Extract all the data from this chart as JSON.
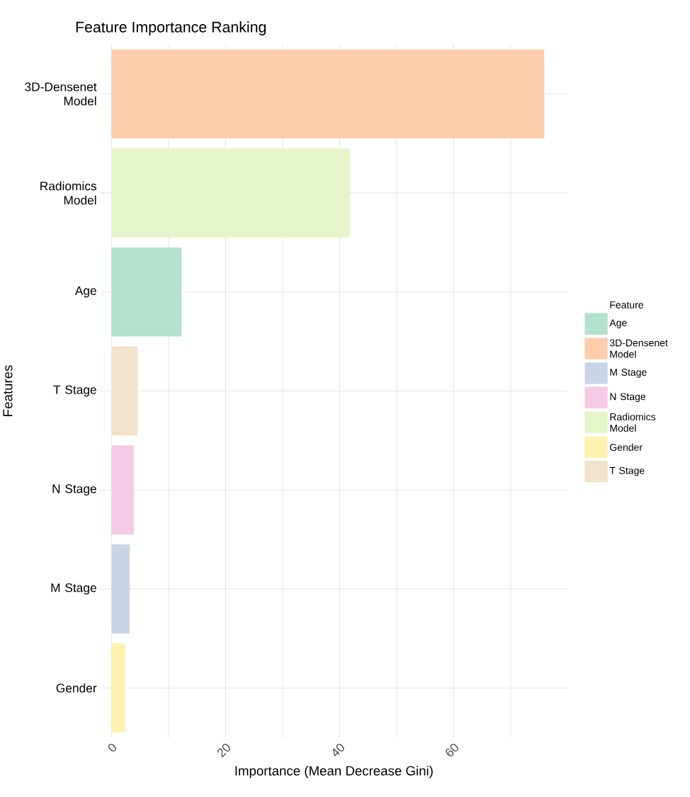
{
  "chart_data": {
    "type": "bar",
    "orientation": "horizontal",
    "title": "Feature Importance Ranking",
    "xlabel": "Importance (Mean Decrease Gini)",
    "ylabel": "Features",
    "legend_title": "Feature",
    "categories": [
      "3D-Densenet Model",
      "Radiomics Model",
      "Age",
      "T Stage",
      "N Stage",
      "M Stage",
      "Gender"
    ],
    "series": [
      {
        "name": "Age",
        "color": "#b3e2cd",
        "values": [
          null,
          null,
          12.3,
          null,
          null,
          null,
          null
        ]
      },
      {
        "name": "3D-Densenet Model",
        "color": "#fdcdac",
        "values": [
          75.9,
          null,
          null,
          null,
          null,
          null,
          null
        ]
      },
      {
        "name": "M Stage",
        "color": "#cbd5e8",
        "values": [
          null,
          null,
          null,
          null,
          null,
          3.2,
          null
        ]
      },
      {
        "name": "N Stage",
        "color": "#f4cae4",
        "values": [
          null,
          null,
          null,
          null,
          3.9,
          null,
          null
        ]
      },
      {
        "name": "Radiomics Model",
        "color": "#e6f5c9",
        "values": [
          null,
          41.8,
          null,
          null,
          null,
          null,
          null
        ]
      },
      {
        "name": "Gender",
        "color": "#fff2ae",
        "values": [
          null,
          null,
          null,
          null,
          null,
          null,
          2.4
        ]
      },
      {
        "name": "T Stage",
        "color": "#f1e2cc",
        "values": [
          null,
          null,
          null,
          4.6,
          null,
          null,
          null
        ]
      }
    ],
    "xlim": [
      -2,
      80
    ],
    "xticks": [
      0,
      {
        "value": 10,
        "label": null
      },
      20,
      {
        "value": 30,
        "label": null
      },
      40,
      {
        "value": 50,
        "label": null
      },
      60,
      {
        "value": 70,
        "label": null
      }
    ],
    "grid": true,
    "legend": "right"
  }
}
